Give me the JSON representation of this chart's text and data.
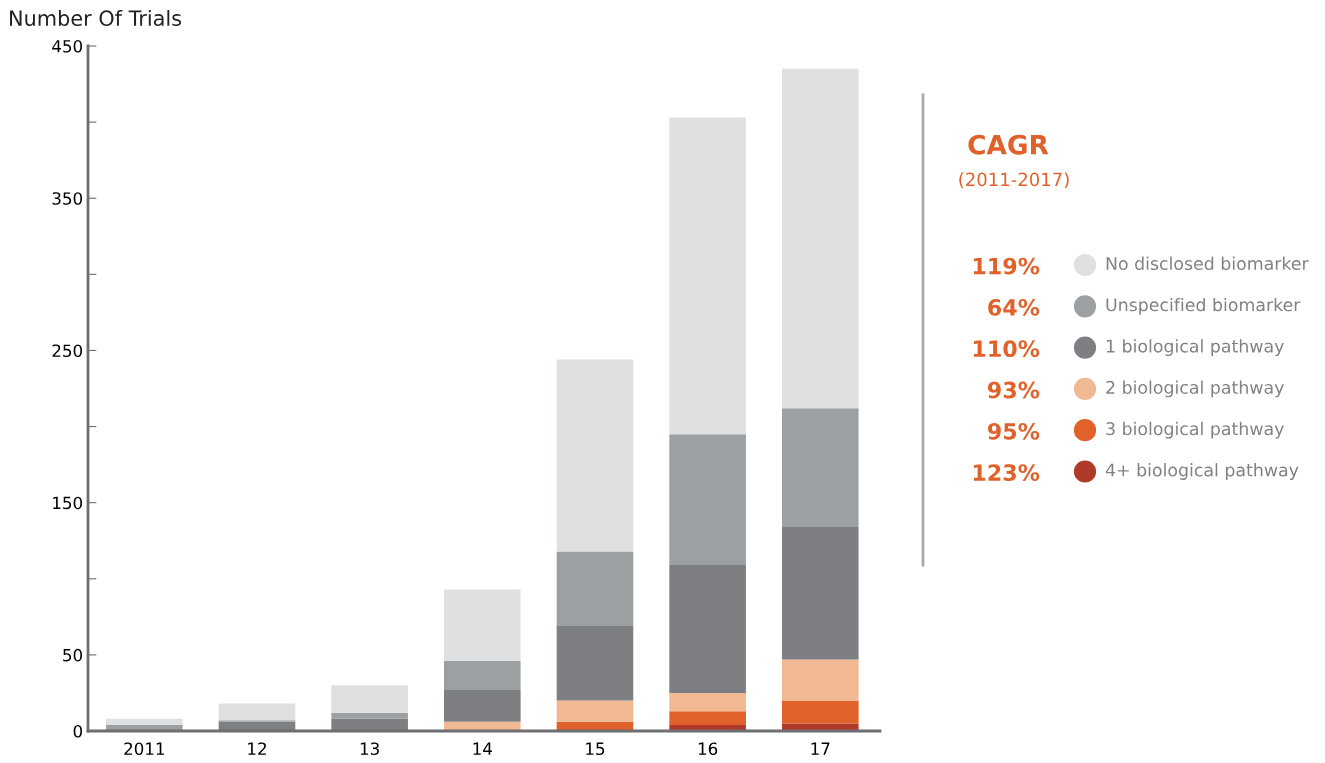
{
  "chart_data": {
    "type": "bar",
    "stacked": true,
    "ylabel": "Number Of Trials",
    "categories": [
      "2011",
      "12",
      "13",
      "14",
      "15",
      "16",
      "17"
    ],
    "series": [
      {
        "name": "4+ biological pathway",
        "color": "#b03a2a",
        "values": [
          0,
          0,
          0,
          0,
          0,
          4,
          5
        ]
      },
      {
        "name": "3 biological pathway",
        "color": "#e0622a",
        "values": [
          0,
          0,
          0,
          0,
          6,
          9,
          15
        ]
      },
      {
        "name": "2 biological pathway",
        "color": "#f0b994",
        "values": [
          0,
          0,
          0,
          6,
          14,
          12,
          27
        ]
      },
      {
        "name": "1 biological pathway",
        "color": "#7e7f83",
        "values": [
          null,
          6,
          8,
          21,
          49,
          84,
          87
        ]
      },
      {
        "name": "Unspecified biomarker",
        "color": "#9da0a3",
        "values": [
          4,
          1,
          4,
          19,
          49,
          86,
          78
        ]
      },
      {
        "name": "No disclosed biomarker",
        "color": "#dfe0e2",
        "values": [
          4,
          11,
          18,
          47,
          126,
          208,
          223
        ]
      }
    ],
    "ylim": [
      0,
      450
    ],
    "yticks": [
      0,
      50,
      {
        "value": 100,
        "label": null
      },
      150,
      {
        "value": 200,
        "label": null
      },
      250,
      {
        "value": 300,
        "label": null
      },
      350,
      {
        "value": 400,
        "label": null
      },
      450
    ],
    "grid": false,
    "legend": "right",
    "annotations": [
      "CAGR",
      "(2011-2017)",
      "123%",
      "95%",
      "93%",
      "110%",
      "64%",
      "119%"
    ]
  }
}
